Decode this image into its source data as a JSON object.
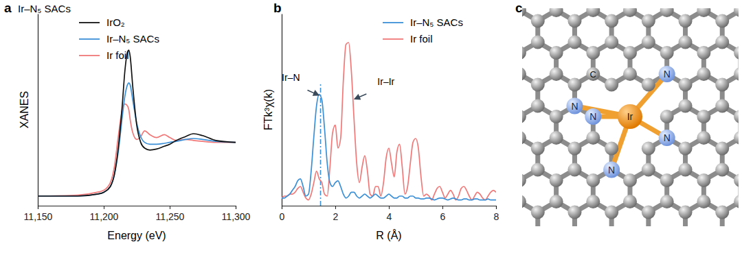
{
  "chart_data": [
    {
      "type": "line",
      "panel_label": "a",
      "title": "Ir–N₅ SACs",
      "x_label": "Energy (eV)",
      "y_label": "XANES",
      "xlim": [
        11150,
        11300
      ],
      "ylim": [
        0,
        1
      ],
      "xticks": [
        {
          "value": 11150,
          "label": "11,150"
        },
        {
          "value": 11200,
          "label": "11,200"
        },
        {
          "value": 11250,
          "label": "11,250"
        },
        {
          "value": 11300,
          "label": "11,300"
        }
      ],
      "tick_labels": "x",
      "legend": "upper left",
      "x": [
        11150,
        11180,
        11195,
        11200,
        11205,
        11208,
        11211,
        11214,
        11216,
        11218,
        11219,
        11220,
        11222,
        11225,
        11228,
        11231,
        11235,
        11240,
        11246,
        11250,
        11255,
        11262,
        11268,
        11275,
        11285,
        11300
      ],
      "series": [
        {
          "name": "IrO₂",
          "color": "#111111",
          "values": [
            0.05,
            0.05,
            0.06,
            0.07,
            0.1,
            0.16,
            0.3,
            0.52,
            0.7,
            0.8,
            0.81,
            0.78,
            0.62,
            0.42,
            0.33,
            0.3,
            0.29,
            0.295,
            0.31,
            0.32,
            0.34,
            0.36,
            0.375,
            0.365,
            0.34,
            0.33
          ]
        },
        {
          "name": "Ir–N₅ SACs",
          "color": "#3b8fd6",
          "values": [
            0.05,
            0.05,
            0.06,
            0.07,
            0.1,
            0.16,
            0.28,
            0.46,
            0.57,
            0.63,
            0.64,
            0.63,
            0.55,
            0.43,
            0.36,
            0.33,
            0.32,
            0.32,
            0.325,
            0.33,
            0.335,
            0.345,
            0.35,
            0.345,
            0.335,
            0.33
          ]
        },
        {
          "name": "Ir foil",
          "color": "#f07878",
          "values": [
            0.05,
            0.055,
            0.07,
            0.08,
            0.12,
            0.2,
            0.36,
            0.5,
            0.53,
            0.52,
            0.5,
            0.45,
            0.38,
            0.345,
            0.36,
            0.39,
            0.37,
            0.355,
            0.37,
            0.355,
            0.34,
            0.345,
            0.34,
            0.335,
            0.33,
            0.33
          ]
        }
      ]
    },
    {
      "type": "line",
      "panel_label": "b",
      "x_label": "R (Å)",
      "y_label": "FTk³χ(k)",
      "xlim": [
        0,
        8
      ],
      "ylim": [
        0,
        1
      ],
      "xticks": [
        0,
        2,
        4,
        6,
        8
      ],
      "tick_labels": "x",
      "legend": "upper right",
      "x": [
        0,
        0.1,
        0.2,
        0.3,
        0.4,
        0.5,
        0.6,
        0.7,
        0.8,
        0.9,
        1,
        1.1,
        1.2,
        1.3,
        1.4,
        1.5,
        1.6,
        1.7,
        1.8,
        1.9,
        2,
        2.1,
        2.2,
        2.3,
        2.4,
        2.5,
        2.6,
        2.7,
        2.8,
        2.9,
        3,
        3.1,
        3.2,
        3.3,
        3.4,
        3.5,
        3.6,
        3.7,
        3.8,
        3.9,
        4,
        4.1,
        4.2,
        4.3,
        4.4,
        4.5,
        4.6,
        4.7,
        4.8,
        4.9,
        5,
        5.1,
        5.2,
        5.3,
        5.4,
        5.5,
        5.6,
        5.7,
        5.8,
        5.9,
        6,
        6.1,
        6.2,
        6.3,
        6.4,
        6.5,
        6.6,
        6.7,
        6.8,
        6.9,
        7,
        7.1,
        7.2,
        7.3,
        7.4,
        7.5,
        7.6,
        7.7,
        7.8,
        7.9,
        8
      ],
      "series": [
        {
          "name": "Ir–N₅ SACs",
          "color": "#3b8fd6",
          "values": [
            0.04,
            0.04,
            0.05,
            0.06,
            0.08,
            0.1,
            0.13,
            0.14,
            0.1,
            0.05,
            0.06,
            0.18,
            0.36,
            0.52,
            0.58,
            0.55,
            0.4,
            0.22,
            0.12,
            0.1,
            0.12,
            0.13,
            0.1,
            0.06,
            0.04,
            0.05,
            0.07,
            0.07,
            0.05,
            0.04,
            0.05,
            0.06,
            0.05,
            0.04,
            0.05,
            0.06,
            0.05,
            0.04,
            0.04,
            0.05,
            0.06,
            0.05,
            0.04,
            0.04,
            0.05,
            0.05,
            0.04,
            0.04,
            0.05,
            0.05,
            0.04,
            0.04,
            0.035,
            0.035,
            0.04,
            0.04,
            0.035,
            0.03,
            0.035,
            0.04,
            0.04,
            0.035,
            0.03,
            0.035,
            0.04,
            0.035,
            0.03,
            0.03,
            0.035,
            0.035,
            0.03,
            0.03,
            0.035,
            0.035,
            0.03,
            0.03,
            0.03,
            0.035,
            0.03,
            0.03,
            0.03
          ]
        },
        {
          "name": "Ir foil",
          "color": "#f07878",
          "values": [
            0.04,
            0.05,
            0.05,
            0.06,
            0.06,
            0.07,
            0.09,
            0.1,
            0.07,
            0.04,
            0.03,
            0.06,
            0.12,
            0.18,
            0.14,
            0.12,
            0.06,
            0.05,
            0.2,
            0.38,
            0.42,
            0.3,
            0.35,
            0.65,
            0.84,
            0.85,
            0.7,
            0.45,
            0.22,
            0.12,
            0.2,
            0.26,
            0.18,
            0.06,
            0.05,
            0.1,
            0.1,
            0.05,
            0.12,
            0.25,
            0.3,
            0.22,
            0.15,
            0.28,
            0.32,
            0.2,
            0.06,
            0.1,
            0.22,
            0.33,
            0.35,
            0.3,
            0.15,
            0.05,
            0.06,
            0.05,
            0.03,
            0.06,
            0.09,
            0.1,
            0.07,
            0.04,
            0.06,
            0.08,
            0.06,
            0.03,
            0.05,
            0.09,
            0.1,
            0.08,
            0.05,
            0.03,
            0.05,
            0.07,
            0.06,
            0.04,
            0.03,
            0.05,
            0.07,
            0.08,
            0.07
          ]
        }
      ],
      "vlines": [
        {
          "x": 1.45,
          "color": "#3b8fd6",
          "line_style": "dashdot"
        }
      ],
      "annotations": [
        {
          "text": "Ir–N",
          "x": 1.45,
          "y": 0.57
        },
        {
          "text": "Ir–Ir",
          "x": 2.65,
          "y": 0.55
        }
      ]
    }
  ],
  "diagram": {
    "panel_label": "c",
    "center": "Ir",
    "ligands": [
      "N",
      "N",
      "N",
      "N",
      "N"
    ],
    "host_label": "C"
  }
}
